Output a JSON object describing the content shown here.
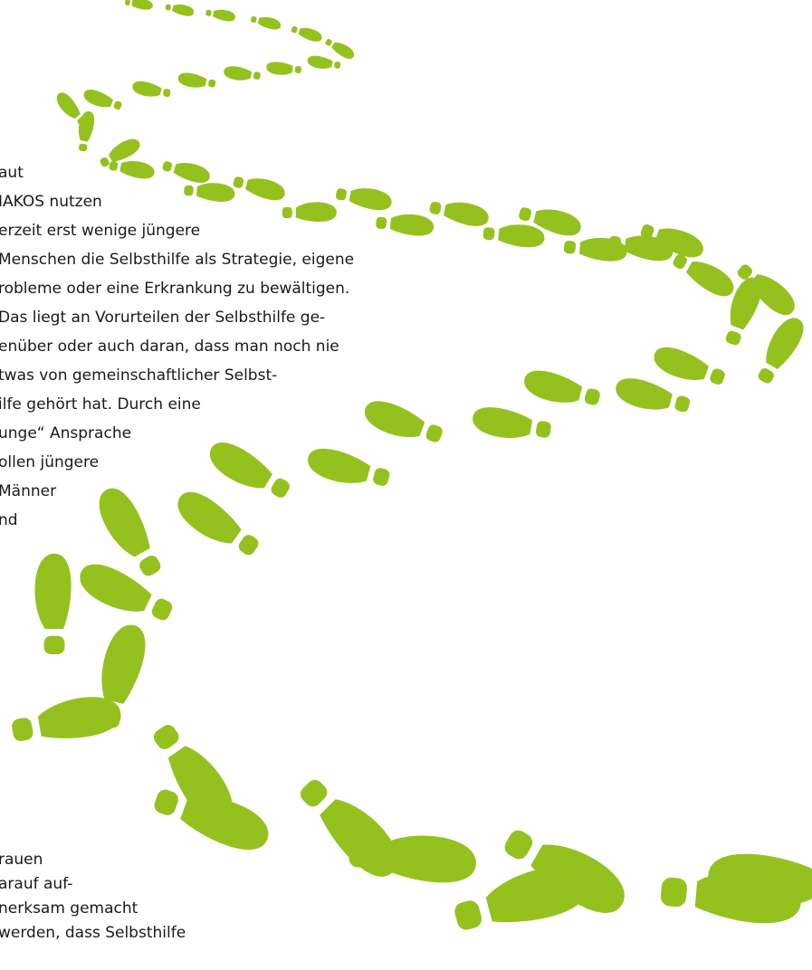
{
  "text_blocks": [
    {
      "lines": [
        "aut",
        "IAKOS nutzen",
        "erzeit erst wenige jüngere",
        "Menschen die Selbsthilfe als Strategie, eigene",
        "robleme oder eine Erkrankung zu bewältigen.",
        "Das liegt an Vorurteilen der Selbsthilfe ge-",
        "enüber oder auch daran, dass man noch nie",
        "twas von gemeinschaftlicher Selbst-",
        "ilfe gehört hat. Durch eine",
        "unge“ Ansprache",
        "ollen jüngere",
        "Männer",
        "nd"
      ]
    },
    {
      "lines": [
        "rauen",
        "arauf auf-",
        "nerksam gemacht",
        "werden, dass Selbsthilfe"
      ]
    }
  ]
}
